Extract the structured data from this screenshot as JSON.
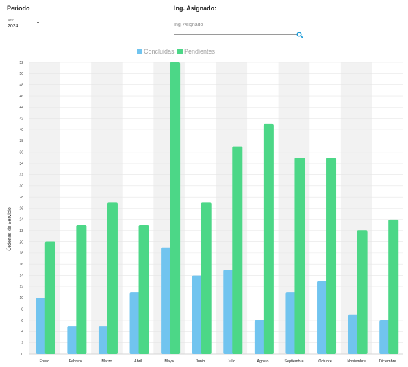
{
  "filters": {
    "periodo_label": "Periodo",
    "year_caption": "Año",
    "year_value": "2024",
    "ing_label": "Ing. Asignado:",
    "ing_placeholder": "Ing. Asignado",
    "ing_value": ""
  },
  "icons": {
    "year_caret": "caret-down-icon",
    "search": "search-icon"
  },
  "colors": {
    "concluidas": "#71c4ef",
    "pendientes": "#4cd787",
    "band": "#f2f2f2",
    "search_icon": "#1d9bd7"
  },
  "chart_data": {
    "type": "bar",
    "categories": [
      "Enero",
      "Febrero",
      "Marzo",
      "Abril",
      "Mayo",
      "Junio",
      "Julio",
      "Agosto",
      "Septiembre",
      "Octubre",
      "Noviembre",
      "Diciembre"
    ],
    "series": [
      {
        "name": "Concluidas",
        "values": [
          10,
          5,
          5,
          11,
          19,
          14,
          15,
          6,
          11,
          13,
          7,
          6
        ]
      },
      {
        "name": "Pendientes",
        "values": [
          20,
          23,
          27,
          23,
          52,
          27,
          37,
          41,
          35,
          35,
          22,
          24
        ]
      }
    ],
    "ylabel": "Órdenes de Servicio",
    "xlabel": "",
    "ylim": [
      0,
      52
    ],
    "yticks": [
      0,
      2,
      4,
      6,
      8,
      10,
      12,
      14,
      16,
      18,
      20,
      22,
      24,
      26,
      28,
      30,
      32,
      34,
      36,
      38,
      40,
      42,
      44,
      46,
      48,
      50,
      52
    ],
    "legend_position": "top-center",
    "grid": true,
    "alternate_bands": true
  }
}
